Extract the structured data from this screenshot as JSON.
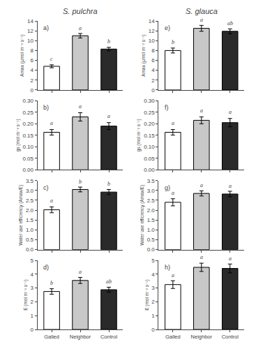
{
  "chart_data": [
    {
      "type": "bar",
      "title": "S. pulchra",
      "ylabel": "Amax (μmol m⁻² s⁻¹)",
      "categories": [
        "Galled",
        "Neighbor",
        "Control"
      ],
      "colors": [
        "white",
        "#c8c8c8",
        "#2a2a2a"
      ],
      "values": [
        4.8,
        11.0,
        8.3
      ],
      "errors": [
        0.3,
        0.45,
        0.35
      ],
      "ylim": [
        0,
        14
      ],
      "yticks": [
        0,
        2,
        4,
        6,
        8,
        10,
        12,
        14
      ],
      "grid": false,
      "tick_labels": "y",
      "annotations": [
        {
          "text": "a)"
        },
        {
          "text": "c",
          "x": "Galled",
          "y": 5.3
        },
        {
          "text": "a",
          "x": "Neighbor",
          "y": 11.65
        },
        {
          "text": "b",
          "x": "Control",
          "y": 8.85
        }
      ]
    },
    {
      "type": "bar",
      "ylabel": "gs (mol m⁻² s⁻¹)",
      "categories": [
        "Galled",
        "Neighbor",
        "Control"
      ],
      "colors": [
        "white",
        "#c8c8c8",
        "#2a2a2a"
      ],
      "values": [
        0.163,
        0.23,
        0.19
      ],
      "errors": [
        0.012,
        0.018,
        0.015
      ],
      "ylim": [
        0,
        0.3
      ],
      "yticks": [
        {
          "value": 0,
          "label": "0.00"
        },
        0.05,
        {
          "value": 0.1,
          "label": "0.10"
        },
        0.15,
        {
          "value": 0.2,
          "label": "0.20"
        },
        0.25,
        {
          "value": 0.3,
          "label": "0.30"
        }
      ],
      "grid": false,
      "tick_labels": "y",
      "annotations": [
        {
          "text": "b)"
        },
        {
          "text": "a",
          "x": "Galled",
          "y": 0.183
        },
        {
          "text": "a",
          "x": "Neighbor",
          "y": 0.257
        },
        {
          "text": "a",
          "x": "Control",
          "y": 0.212
        }
      ]
    },
    {
      "type": "bar",
      "ylabel": "Water use efficiency (Amax/E)",
      "categories": [
        "Galled",
        "Neighbor",
        "Control"
      ],
      "colors": [
        "white",
        "#c8c8c8",
        "#2a2a2a"
      ],
      "values": [
        2.02,
        3.05,
        2.92
      ],
      "errors": [
        0.15,
        0.12,
        0.13
      ],
      "ylim": [
        0,
        3.5
      ],
      "yticks": [
        {
          "value": 0,
          "label": "0.0"
        },
        0.5,
        {
          "value": 1,
          "label": "1.0"
        },
        1.5,
        {
          "value": 2,
          "label": "2.0"
        },
        2.5,
        {
          "value": 3,
          "label": "3.0"
        },
        3.5
      ],
      "grid": false,
      "tick_labels": "y",
      "annotations": [
        {
          "text": "c)"
        },
        {
          "text": "a",
          "x": "Galled",
          "y": 2.24
        },
        {
          "text": "b",
          "x": "Neighbor",
          "y": 3.22
        },
        {
          "text": "b",
          "x": "Control",
          "y": 3.1
        }
      ]
    },
    {
      "type": "bar",
      "ylabel": "E (mol m⁻² s⁻¹)",
      "categories": [
        "Galled",
        "Neighbor",
        "Control"
      ],
      "colors": [
        "white",
        "#c8c8c8",
        "#2a2a2a"
      ],
      "values": [
        2.75,
        3.55,
        2.88
      ],
      "errors": [
        0.2,
        0.22,
        0.18
      ],
      "ylim": [
        0,
        5
      ],
      "yticks": [
        0,
        1,
        2,
        3,
        4,
        5
      ],
      "grid": false,
      "annotations": [
        {
          "text": "d)"
        },
        {
          "text": "b",
          "x": "Galled",
          "y": 3.02
        },
        {
          "text": "a",
          "x": "Neighbor",
          "y": 3.84
        },
        {
          "text": "ab",
          "x": "Control",
          "y": 3.12
        }
      ]
    },
    {
      "type": "bar",
      "title": "S. glauca",
      "ylabel": "Amax (μmol m⁻² s⁻¹)",
      "categories": [
        "Galled",
        "Neighbor",
        "Control"
      ],
      "colors": [
        "white",
        "#c8c8c8",
        "#2a2a2a"
      ],
      "values": [
        8.0,
        12.5,
        11.9
      ],
      "errors": [
        0.5,
        0.6,
        0.5
      ],
      "ylim": [
        0,
        14
      ],
      "yticks": [
        0,
        2,
        4,
        6,
        8,
        10,
        12,
        14
      ],
      "grid": false,
      "tick_labels": "y",
      "annotations": [
        {
          "text": "e)"
        },
        {
          "text": "b",
          "x": "Galled",
          "y": 8.7
        },
        {
          "text": "a",
          "x": "Neighbor",
          "y": 13.3
        },
        {
          "text": "ab",
          "x": "Control",
          "y": 12.6
        }
      ]
    },
    {
      "type": "bar",
      "ylabel": "gs (mol m⁻² s⁻¹)",
      "categories": [
        "Galled",
        "Neighbor",
        "Control"
      ],
      "colors": [
        "white",
        "#c8c8c8",
        "#2a2a2a"
      ],
      "values": [
        0.163,
        0.215,
        0.205
      ],
      "errors": [
        0.012,
        0.015,
        0.018
      ],
      "ylim": [
        0,
        0.3
      ],
      "yticks": [
        {
          "value": 0,
          "label": "0.00"
        },
        0.05,
        {
          "value": 0.1,
          "label": "0.10"
        },
        0.15,
        {
          "value": 0.2,
          "label": "0.20"
        },
        0.25,
        {
          "value": 0.3,
          "label": "0.30"
        }
      ],
      "grid": false,
      "tick_labels": "y",
      "annotations": [
        {
          "text": "f)"
        },
        {
          "text": "a",
          "x": "Galled",
          "y": 0.182
        },
        {
          "text": "a",
          "x": "Neighbor",
          "y": 0.237
        },
        {
          "text": "a",
          "x": "Control",
          "y": 0.231
        }
      ]
    },
    {
      "type": "bar",
      "ylabel": "Water use efficiency (Amax/E)",
      "categories": [
        "Galled",
        "Neighbor",
        "Control"
      ],
      "colors": [
        "white",
        "#c8c8c8",
        "#2a2a2a"
      ],
      "values": [
        2.4,
        2.85,
        2.82
      ],
      "errors": [
        0.18,
        0.13,
        0.14
      ],
      "ylim": [
        0,
        3.5
      ],
      "yticks": [
        {
          "value": 0,
          "label": "0.0"
        },
        0.5,
        {
          "value": 1,
          "label": "1.0"
        },
        1.5,
        {
          "value": 2,
          "label": "2.0"
        },
        2.5,
        {
          "value": 3,
          "label": "3.0"
        },
        3.5
      ],
      "grid": false,
      "tick_labels": "y",
      "annotations": [
        {
          "text": "g)"
        },
        {
          "text": "a",
          "x": "Galled",
          "y": 2.65
        },
        {
          "text": "a",
          "x": "Neighbor",
          "y": 3.02
        },
        {
          "text": "a",
          "x": "Control",
          "y": 3.0
        }
      ]
    },
    {
      "type": "bar",
      "ylabel": "E (mol m⁻² s⁻¹)",
      "categories": [
        "Galled",
        "Neighbor",
        "Control"
      ],
      "colors": [
        "white",
        "#c8c8c8",
        "#2a2a2a"
      ],
      "values": [
        3.25,
        4.5,
        4.42
      ],
      "errors": [
        0.28,
        0.3,
        0.32
      ],
      "ylim": [
        0,
        5
      ],
      "yticks": [
        0,
        1,
        2,
        3,
        4,
        5
      ],
      "grid": false,
      "annotations": [
        {
          "text": "h)"
        },
        {
          "text": "a",
          "x": "Galled",
          "y": 3.6
        },
        {
          "text": "a",
          "x": "Neighbor",
          "y": 4.88
        },
        {
          "text": "a",
          "x": "Control",
          "y": 4.82
        }
      ]
    }
  ]
}
